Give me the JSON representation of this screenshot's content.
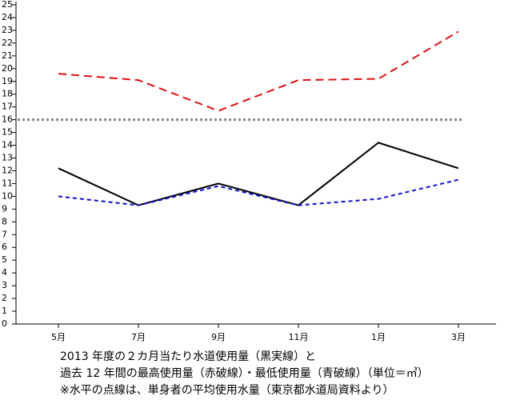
{
  "chart_data": {
    "type": "line",
    "categories": [
      "5月",
      "7月",
      "9月",
      "11月",
      "1月",
      "3月"
    ],
    "series": [
      {
        "color": "#000000",
        "style": "solid",
        "values": [
          12.2,
          9.3,
          11.0,
          9.3,
          14.2,
          12.2
        ]
      },
      {
        "color": "#e01010",
        "style": "dashed",
        "values": [
          19.6,
          19.1,
          16.7,
          19.1,
          19.2,
          22.9
        ]
      },
      {
        "color": "#1010d0",
        "style": "short-dashed",
        "values": [
          10.0,
          9.3,
          10.8,
          9.3,
          9.8,
          11.3
        ]
      }
    ],
    "hlines": [
      {
        "value": 16,
        "color": "#888888",
        "style": "dotted"
      }
    ],
    "ylim": [
      0,
      25
    ],
    "yticks": [
      0,
      1,
      2,
      3,
      4,
      5,
      6,
      7,
      8,
      9,
      10,
      11,
      12,
      13,
      14,
      15,
      16,
      17,
      18,
      19,
      20,
      21,
      22,
      23,
      24,
      25
    ],
    "notes": [
      "2013 年度の２カ月当たり水道使用量（黒実線）と",
      "過去 12 年間の最高使用量（赤破線）・最低使用量（青破線）（単位＝㎥）",
      "※水平の点線は、単身者の平均使用水量（東京都水道局資料より）"
    ]
  }
}
